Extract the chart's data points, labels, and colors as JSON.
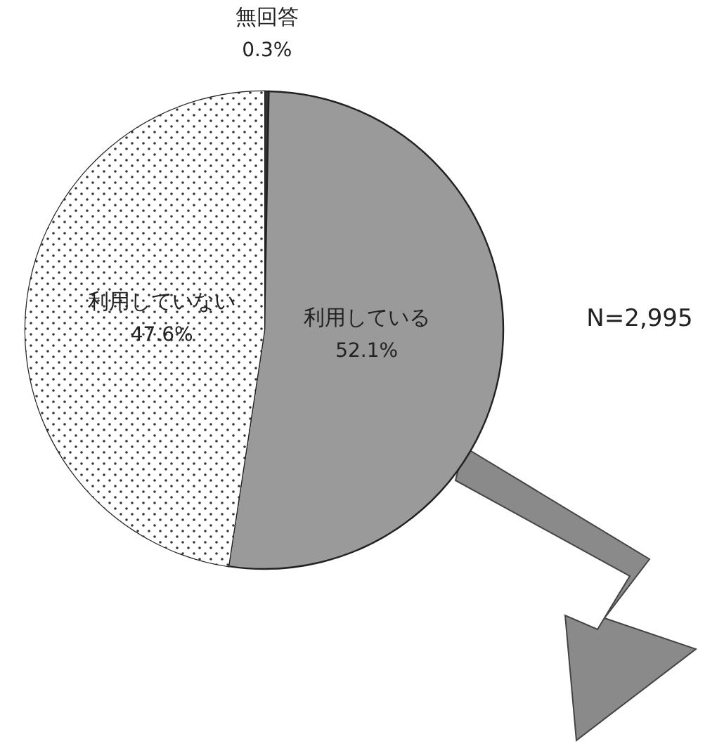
{
  "chart_data": {
    "type": "pie",
    "categories": [
      "無回答",
      "利用している",
      "利用していない"
    ],
    "values": [
      0.3,
      52.1,
      47.6
    ],
    "colors": [
      "#333333",
      "#9a9a9a",
      "#ffffff"
    ],
    "value_labels": [
      "0.3%",
      "52.1%",
      "47.6%"
    ],
    "annotations": [
      "N=2,995"
    ]
  }
}
